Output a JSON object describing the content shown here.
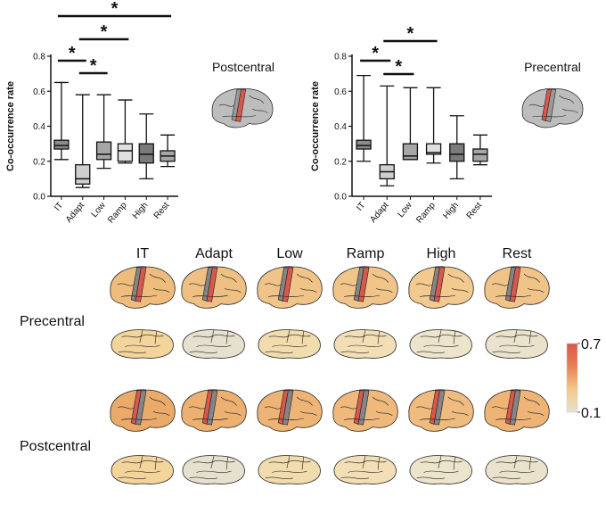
{
  "chart_data": [
    {
      "type": "box",
      "y_label": "Co-occurrence rate",
      "region_label": "Postcentral",
      "categories": [
        "IT",
        "Adapt",
        "Low",
        "Ramp",
        "High",
        "Rest"
      ],
      "colors": [
        "#8c8c8c",
        "#cfcfcf",
        "#a6a6a6",
        "#e0e0e0",
        "#7a7a7a",
        "#a6a6a6"
      ],
      "stats": [
        {
          "min": 0.21,
          "q1": 0.27,
          "median": 0.29,
          "q3": 0.32,
          "max": 0.65
        },
        {
          "min": 0.05,
          "q1": 0.07,
          "median": 0.1,
          "q3": 0.18,
          "max": 0.58
        },
        {
          "min": 0.16,
          "q1": 0.21,
          "median": 0.24,
          "q3": 0.31,
          "max": 0.58
        },
        {
          "min": 0.19,
          "q1": 0.2,
          "median": 0.26,
          "q3": 0.3,
          "max": 0.55
        },
        {
          "min": 0.1,
          "q1": 0.19,
          "median": 0.24,
          "q3": 0.3,
          "max": 0.47
        },
        {
          "min": 0.17,
          "q1": 0.2,
          "median": 0.23,
          "q3": 0.26,
          "max": 0.35
        }
      ],
      "ylim": [
        0,
        0.8
      ],
      "yticks": [
        {
          "value": 0,
          "label": "0.0"
        },
        0.2,
        0.4,
        0.6,
        0.8
      ],
      "annotations": [
        "*",
        "*",
        "*",
        "*"
      ]
    },
    {
      "type": "box",
      "y_label": "Co-occurrence rate",
      "region_label": "Precentral",
      "categories": [
        "IT",
        "Adapt",
        "Low",
        "Ramp",
        "High",
        "Rest"
      ],
      "colors": [
        "#8c8c8c",
        "#cfcfcf",
        "#a6a6a6",
        "#e0e0e0",
        "#7a7a7a",
        "#a6a6a6"
      ],
      "stats": [
        {
          "min": 0.2,
          "q1": 0.27,
          "median": 0.29,
          "q3": 0.32,
          "max": 0.69
        },
        {
          "min": 0.06,
          "q1": 0.1,
          "median": 0.14,
          "q3": 0.18,
          "max": 0.63
        },
        {
          "min": 0.21,
          "q1": 0.21,
          "median": 0.23,
          "q3": 0.3,
          "max": 0.62
        },
        {
          "min": 0.19,
          "q1": 0.24,
          "median": 0.25,
          "q3": 0.3,
          "max": 0.62
        },
        {
          "min": 0.1,
          "q1": 0.2,
          "median": 0.24,
          "q3": 0.3,
          "max": 0.46
        },
        {
          "min": 0.18,
          "q1": 0.2,
          "median": 0.24,
          "q3": 0.27,
          "max": 0.35
        }
      ],
      "ylim": [
        0,
        0.8
      ],
      "yticks": [
        {
          "value": 0,
          "label": "0.0"
        },
        0.2,
        0.4,
        0.6,
        0.8
      ],
      "annotations": [
        "*",
        "*",
        "*"
      ]
    }
  ],
  "brain_map": {
    "columns": [
      "IT",
      "Adapt",
      "Low",
      "Ramp",
      "High",
      "Rest"
    ],
    "rows": [
      "Precentral",
      "Postcentral"
    ],
    "colorbar": {
      "ticks": [
        0.1,
        0.7
      ],
      "colors": [
        "#e6e1cf",
        "#f3c98a",
        "#e97f55",
        "#d9584c"
      ]
    }
  }
}
